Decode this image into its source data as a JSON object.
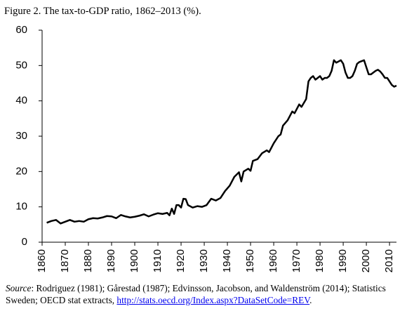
{
  "chart_data": {
    "type": "line",
    "title": "Figure 2. The tax-to-GDP ratio, 1862–2013 (%).",
    "x": [
      1862,
      1864,
      1866,
      1868,
      1870,
      1872,
      1874,
      1876,
      1878,
      1880,
      1882,
      1884,
      1886,
      1888,
      1890,
      1892,
      1894,
      1896,
      1898,
      1900,
      1902,
      1904,
      1906,
      1908,
      1910,
      1912,
      1914,
      1915,
      1916,
      1917,
      1918,
      1919,
      1920,
      1921,
      1922,
      1923,
      1925,
      1927,
      1929,
      1931,
      1933,
      1935,
      1937,
      1939,
      1941,
      1943,
      1945,
      1946,
      1947,
      1949,
      1950,
      1951,
      1953,
      1955,
      1957,
      1958,
      1960,
      1962,
      1963,
      1964,
      1966,
      1968,
      1969,
      1971,
      1972,
      1974,
      1975,
      1976,
      1977,
      1978,
      1979,
      1980,
      1981,
      1982,
      1983,
      1984,
      1985,
      1986,
      1987,
      1989,
      1990,
      1991,
      1992,
      1993,
      1994,
      1995,
      1996,
      1997,
      1999,
      2000,
      2001,
      2002,
      2003,
      2004,
      2005,
      2006,
      2007,
      2008,
      2009,
      2010,
      2011,
      2012,
      2013
    ],
    "values": [
      5.5,
      6,
      6.3,
      5.3,
      5.8,
      6.3,
      5.8,
      6,
      5.8,
      6.5,
      6.8,
      6.7,
      7,
      7.4,
      7.3,
      6.8,
      7.7,
      7.3,
      7,
      7.2,
      7.5,
      7.9,
      7.3,
      7.8,
      8.2,
      8,
      8.3,
      7.6,
      9.5,
      8,
      10.5,
      10.5,
      9.8,
      12.3,
      12.2,
      10.5,
      9.8,
      10.2,
      10,
      10.5,
      12.3,
      11.8,
      12.5,
      14.5,
      16,
      18.5,
      19.8,
      17.2,
      20,
      20.8,
      20.2,
      23,
      23.5,
      25.2,
      26,
      25.5,
      28,
      30,
      30.5,
      33,
      34.5,
      37,
      36.5,
      39,
      38.3,
      40.5,
      45.5,
      46.5,
      47,
      46,
      46.5,
      47,
      46,
      46.5,
      46.5,
      47,
      48.5,
      51.5,
      50.8,
      51.5,
      50.5,
      48,
      46.5,
      46.5,
      47,
      48.5,
      50.5,
      51,
      51.5,
      49.5,
      47.5,
      47.5,
      48,
      48.5,
      48.8,
      48.3,
      47.5,
      46.5,
      46.5,
      45.5,
      44.5,
      44,
      44.3
    ],
    "color": "#000000",
    "xlim": [
      1860,
      2013
    ],
    "xticks": [
      1860,
      1870,
      1880,
      1890,
      1900,
      1910,
      1920,
      1930,
      1940,
      1950,
      1960,
      1970,
      1980,
      1990,
      2000,
      2010
    ],
    "ylim": [
      0,
      60
    ],
    "yticks": [
      0,
      10,
      20,
      30,
      40,
      50,
      60
    ],
    "grid": false,
    "source_label": "Source",
    "source_text": ": Rodriguez (1981); Gårestad (1987); Edvinsson, Jacobson, and Waldenström (2014); Statistics Sweden; OECD stat extracts, ",
    "source_link": "http://stats.oecd.org/Index.aspx?DataSetCode=REV",
    "source_end": "."
  }
}
